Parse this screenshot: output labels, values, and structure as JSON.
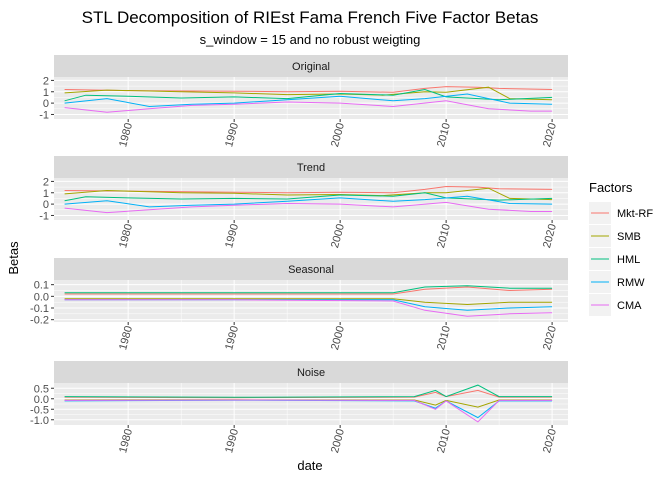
{
  "chart_data": {
    "type": "line",
    "title": "STL Decomposition of RIEst Fama French Five Factor Betas",
    "subtitle": "s_window = 15 and no robust weigting",
    "xlabel": "date",
    "ylabel": "Betas",
    "x_ticks": [
      "1980",
      "1990",
      "2000",
      "2010",
      "2020"
    ],
    "x_range": [
      1973.0,
      2021.5
    ],
    "legend": {
      "title": "Factors",
      "position": "right"
    },
    "series": [
      {
        "name": "Mkt-RF",
        "color": "#F8766D"
      },
      {
        "name": "SMB",
        "color": "#A3A500"
      },
      {
        "name": "HML",
        "color": "#00BF7D"
      },
      {
        "name": "RMW",
        "color": "#00B0F6"
      },
      {
        "name": "CMA",
        "color": "#E76BF3"
      }
    ],
    "panels": [
      {
        "strip": "Original",
        "ylim": [
          -1.4,
          2.3
        ],
        "y_ticks": [
          {
            "v": 2,
            "label": "2"
          },
          {
            "v": 1,
            "label": "1"
          },
          {
            "v": 0,
            "label": "0"
          },
          {
            "v": -1,
            "label": "-1"
          }
        ],
        "lines": {
          "Mkt-RF": [
            [
              1974,
              1.2
            ],
            [
              1980,
              1.1
            ],
            [
              1990,
              1.05
            ],
            [
              1995,
              1.0
            ],
            [
              2000,
              1.05
            ],
            [
              2005,
              0.95
            ],
            [
              2008,
              1.3
            ],
            [
              2010,
              1.45
            ],
            [
              2013,
              1.4
            ],
            [
              2015,
              1.3
            ],
            [
              2020,
              1.2
            ]
          ],
          "SMB": [
            [
              1974,
              0.9
            ],
            [
              1978,
              1.15
            ],
            [
              1985,
              1.0
            ],
            [
              1990,
              0.9
            ],
            [
              1995,
              0.75
            ],
            [
              2000,
              0.8
            ],
            [
              2004,
              0.7
            ],
            [
              2008,
              1.0
            ],
            [
              2010,
              0.95
            ],
            [
              2014,
              1.4
            ],
            [
              2016,
              0.4
            ],
            [
              2020,
              0.3
            ]
          ],
          "HML": [
            [
              1974,
              0.2
            ],
            [
              1976,
              0.7
            ],
            [
              1980,
              0.6
            ],
            [
              1985,
              0.45
            ],
            [
              1990,
              0.55
            ],
            [
              1995,
              0.4
            ],
            [
              2000,
              0.85
            ],
            [
              2005,
              0.7
            ],
            [
              2008,
              1.2
            ],
            [
              2010,
              0.55
            ],
            [
              2015,
              0.3
            ],
            [
              2020,
              0.5
            ]
          ],
          "RMW": [
            [
              1974,
              0.0
            ],
            [
              1978,
              0.4
            ],
            [
              1982,
              -0.3
            ],
            [
              1986,
              -0.1
            ],
            [
              1990,
              0.0
            ],
            [
              1995,
              0.3
            ],
            [
              2000,
              0.6
            ],
            [
              2005,
              0.2
            ],
            [
              2008,
              0.4
            ],
            [
              2012,
              0.8
            ],
            [
              2016,
              0.0
            ],
            [
              2020,
              -0.1
            ]
          ],
          "CMA": [
            [
              1974,
              -0.4
            ],
            [
              1978,
              -0.8
            ],
            [
              1982,
              -0.5
            ],
            [
              1986,
              -0.2
            ],
            [
              1990,
              -0.1
            ],
            [
              1995,
              0.1
            ],
            [
              2000,
              0.0
            ],
            [
              2005,
              -0.3
            ],
            [
              2010,
              0.2
            ],
            [
              2014,
              -0.5
            ],
            [
              2018,
              -0.7
            ],
            [
              2020,
              -0.7
            ]
          ]
        }
      },
      {
        "strip": "Trend",
        "ylim": [
          -1.4,
          2.3
        ],
        "y_ticks": [
          {
            "v": 2,
            "label": "2"
          },
          {
            "v": 1,
            "label": "1"
          },
          {
            "v": 0,
            "label": "0"
          },
          {
            "v": -1,
            "label": "-1"
          }
        ],
        "lines": {
          "Mkt-RF": [
            [
              1974,
              1.2
            ],
            [
              1980,
              1.15
            ],
            [
              1990,
              1.05
            ],
            [
              1995,
              1.0
            ],
            [
              2000,
              1.05
            ],
            [
              2005,
              1.0
            ],
            [
              2008,
              1.3
            ],
            [
              2010,
              1.55
            ],
            [
              2013,
              1.5
            ],
            [
              2015,
              1.35
            ],
            [
              2020,
              1.3
            ]
          ],
          "SMB": [
            [
              1974,
              0.9
            ],
            [
              1978,
              1.2
            ],
            [
              1985,
              1.0
            ],
            [
              1990,
              0.95
            ],
            [
              1995,
              0.8
            ],
            [
              2000,
              0.85
            ],
            [
              2004,
              0.75
            ],
            [
              2008,
              1.0
            ],
            [
              2010,
              1.0
            ],
            [
              2014,
              1.4
            ],
            [
              2016,
              0.5
            ],
            [
              2020,
              0.4
            ]
          ],
          "HML": [
            [
              1974,
              0.3
            ],
            [
              1976,
              0.65
            ],
            [
              1980,
              0.55
            ],
            [
              1985,
              0.45
            ],
            [
              1990,
              0.5
            ],
            [
              1995,
              0.45
            ],
            [
              2000,
              0.8
            ],
            [
              2005,
              0.7
            ],
            [
              2008,
              1.0
            ],
            [
              2010,
              0.55
            ],
            [
              2015,
              0.35
            ],
            [
              2020,
              0.5
            ]
          ],
          "RMW": [
            [
              1974,
              0.0
            ],
            [
              1978,
              0.3
            ],
            [
              1982,
              -0.25
            ],
            [
              1986,
              -0.1
            ],
            [
              1990,
              0.0
            ],
            [
              1995,
              0.25
            ],
            [
              2000,
              0.55
            ],
            [
              2005,
              0.25
            ],
            [
              2008,
              0.4
            ],
            [
              2012,
              0.7
            ],
            [
              2016,
              0.05
            ],
            [
              2020,
              0.0
            ]
          ],
          "CMA": [
            [
              1974,
              -0.35
            ],
            [
              1978,
              -0.75
            ],
            [
              1982,
              -0.5
            ],
            [
              1986,
              -0.25
            ],
            [
              1990,
              -0.1
            ],
            [
              1995,
              0.05
            ],
            [
              2000,
              0.0
            ],
            [
              2005,
              -0.25
            ],
            [
              2010,
              0.15
            ],
            [
              2014,
              -0.45
            ],
            [
              2018,
              -0.65
            ],
            [
              2020,
              -0.65
            ]
          ]
        }
      },
      {
        "strip": "Seasonal",
        "ylim": [
          -0.22,
          0.14
        ],
        "y_ticks": [
          {
            "v": 0.1,
            "label": "0.1"
          },
          {
            "v": 0.0,
            "label": "0.0"
          },
          {
            "v": -0.1,
            "label": "-0.1"
          },
          {
            "v": -0.2,
            "label": "-0.2"
          }
        ],
        "lines": {
          "Mkt-RF": [
            [
              1974,
              0.02
            ],
            [
              1990,
              0.02
            ],
            [
              2005,
              0.02
            ],
            [
              2008,
              0.06
            ],
            [
              2012,
              0.08
            ],
            [
              2016,
              0.05
            ],
            [
              2020,
              0.06
            ]
          ],
          "SMB": [
            [
              1974,
              -0.02
            ],
            [
              1990,
              -0.02
            ],
            [
              2005,
              -0.02
            ],
            [
              2008,
              -0.05
            ],
            [
              2012,
              -0.07
            ],
            [
              2016,
              -0.05
            ],
            [
              2020,
              -0.05
            ]
          ],
          "HML": [
            [
              1974,
              0.03
            ],
            [
              1990,
              0.03
            ],
            [
              2005,
              0.03
            ],
            [
              2008,
              0.08
            ],
            [
              2012,
              0.09
            ],
            [
              2016,
              0.07
            ],
            [
              2020,
              0.07
            ]
          ],
          "RMW": [
            [
              1974,
              -0.03
            ],
            [
              1990,
              -0.03
            ],
            [
              2005,
              -0.03
            ],
            [
              2008,
              -0.09
            ],
            [
              2012,
              -0.12
            ],
            [
              2016,
              -0.1
            ],
            [
              2020,
              -0.09
            ]
          ],
          "CMA": [
            [
              1974,
              -0.03
            ],
            [
              1990,
              -0.03
            ],
            [
              2005,
              -0.04
            ],
            [
              2008,
              -0.12
            ],
            [
              2012,
              -0.17
            ],
            [
              2016,
              -0.15
            ],
            [
              2020,
              -0.14
            ]
          ]
        }
      },
      {
        "strip": "Noise",
        "ylim": [
          -1.25,
          0.75
        ],
        "y_ticks": [
          {
            "v": 0.5,
            "label": "0.5"
          },
          {
            "v": 0.0,
            "label": "0.0"
          },
          {
            "v": -0.5,
            "label": "-0.5"
          },
          {
            "v": -1.0,
            "label": "-1.0"
          }
        ],
        "lines": {
          "Mkt-RF": [
            [
              1974,
              0.08
            ],
            [
              1990,
              0.05
            ],
            [
              2007,
              0.08
            ],
            [
              2009,
              0.3
            ],
            [
              2010,
              0.1
            ],
            [
              2013,
              0.4
            ],
            [
              2015,
              0.08
            ],
            [
              2020,
              0.08
            ]
          ],
          "SMB": [
            [
              1974,
              -0.06
            ],
            [
              1990,
              -0.05
            ],
            [
              2007,
              -0.06
            ],
            [
              2009,
              -0.3
            ],
            [
              2010,
              -0.08
            ],
            [
              2013,
              -0.4
            ],
            [
              2015,
              -0.06
            ],
            [
              2020,
              -0.06
            ]
          ],
          "HML": [
            [
              1974,
              0.1
            ],
            [
              1990,
              0.07
            ],
            [
              2007,
              0.1
            ],
            [
              2009,
              0.4
            ],
            [
              2010,
              0.1
            ],
            [
              2013,
              0.65
            ],
            [
              2015,
              0.1
            ],
            [
              2020,
              0.1
            ]
          ],
          "RMW": [
            [
              1974,
              -0.1
            ],
            [
              1990,
              -0.07
            ],
            [
              2007,
              -0.1
            ],
            [
              2009,
              -0.45
            ],
            [
              2010,
              -0.1
            ],
            [
              2013,
              -0.9
            ],
            [
              2015,
              -0.1
            ],
            [
              2020,
              -0.1
            ]
          ],
          "CMA": [
            [
              1974,
              -0.08
            ],
            [
              1990,
              -0.06
            ],
            [
              2007,
              -0.08
            ],
            [
              2009,
              -0.5
            ],
            [
              2010,
              -0.1
            ],
            [
              2013,
              -1.1
            ],
            [
              2015,
              -0.08
            ],
            [
              2020,
              -0.08
            ]
          ]
        }
      }
    ]
  }
}
